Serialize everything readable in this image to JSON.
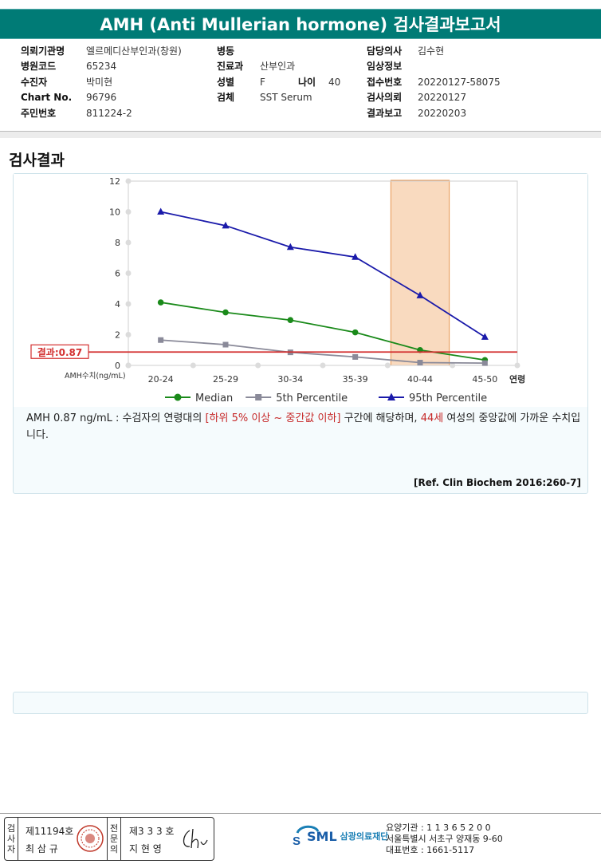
{
  "report_title": "AMH (Anti Mullerian hormone) 검사결과보고서",
  "info_left": [
    {
      "label": "의뢰기관명",
      "value": "엘르메디산부인과(창원)"
    },
    {
      "label": "병원코드",
      "value": "65234"
    },
    {
      "label": "수진자",
      "value": "박미현"
    },
    {
      "label": "Chart No.",
      "value": "96796"
    },
    {
      "label": "주민번호",
      "value": "811224-2"
    }
  ],
  "info_mid": [
    {
      "label": "병동",
      "value": ""
    },
    {
      "label": "진료과",
      "value": "산부인과"
    },
    {
      "label": "성별",
      "value": "F",
      "label2": "나이",
      "value2": "40"
    },
    {
      "label": "검체",
      "value": "SST Serum"
    }
  ],
  "info_right": [
    {
      "label": "담당의사",
      "value": "김수현"
    },
    {
      "label": "임상정보",
      "value": ""
    },
    {
      "label": "접수번호",
      "value": "20220127-58075"
    },
    {
      "label": "검사의뢰",
      "value": "20220127"
    },
    {
      "label": "결과보고",
      "value": "20220203"
    }
  ],
  "section_title": "검사결과",
  "chart_data": {
    "type": "line",
    "categories": [
      "20-24",
      "25-29",
      "30-34",
      "35-39",
      "40-44",
      "45-50"
    ],
    "x_unit_label": "연령",
    "y_axis_label": "AMH수치(ng/mL)",
    "ylim": [
      0,
      12
    ],
    "yticks": [
      0,
      2,
      4,
      6,
      8,
      10,
      12
    ],
    "series": [
      {
        "name": "Median",
        "color": "#1a8a1a",
        "marker": "circle",
        "values": [
          4.1,
          3.45,
          2.95,
          2.15,
          1.0,
          0.35
        ]
      },
      {
        "name": "5th Percentile",
        "color": "#8a8a99",
        "marker": "square",
        "values": [
          1.65,
          1.35,
          0.85,
          0.55,
          0.18,
          0.15
        ]
      },
      {
        "name": "95th Percentile",
        "color": "#1a1aaa",
        "marker": "triangle",
        "values": [
          10.0,
          9.1,
          7.7,
          7.05,
          4.55,
          1.85
        ]
      }
    ],
    "result_line": {
      "label": "결과:0.87",
      "value": 0.87,
      "color": "#d32f2f"
    },
    "highlight_category": "40-44",
    "highlight_color": "#f7caa4",
    "grid": false,
    "legend_position": "bottom"
  },
  "description": {
    "part1": "AMH  0.87 ng/mL : 수검자의 연령대의 ",
    "part2_red": "[하위 5% 이상 ~ 중간값 이하]",
    "part3": " 구간에 해당하며, ",
    "part4_red": "44세",
    "part5": " 여성의 중앙값에 가까운 수치입니다."
  },
  "reference": "[Ref. Clin Biochem 2016:260-7]",
  "footer": {
    "inspector_label": "검사자",
    "inspector_no": "제11194호",
    "inspector_name": "최 삼 규",
    "specialist_label": "전문의",
    "specialist_no": "제3 3 3 호",
    "specialist_name": "지 현 영",
    "logo_text": "SML",
    "org_name": "삼광의료재단",
    "org_code": "요양기관 : 1 1 3 6 5 2 0 0",
    "org_address": "서울특별시 서초구 양재동 9-60",
    "org_phone": "대표번호 : 1661-5117"
  }
}
